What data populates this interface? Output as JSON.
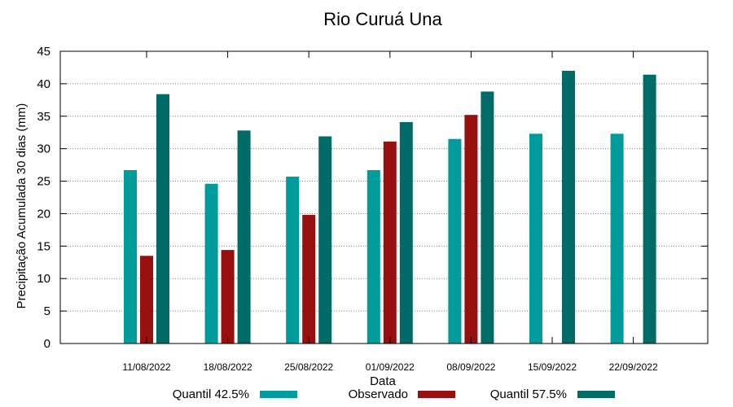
{
  "chart_data": {
    "type": "bar",
    "title": "Rio Curuá Una",
    "xlabel": "Data",
    "ylabel": "Precipitação Acumulada 30 dias (mm)",
    "ylim": [
      0,
      45
    ],
    "yticks": [
      "0",
      "5",
      "10",
      "15",
      "20",
      "25",
      "30",
      "35",
      "40",
      "45"
    ],
    "grid": "horizontal-dotted",
    "legend_position": "bottom",
    "categories": [
      "11/08/2022",
      "18/08/2022",
      "25/08/2022",
      "01/09/2022",
      "08/09/2022",
      "15/09/2022",
      "22/09/2022"
    ],
    "series": [
      {
        "name": "Quantil 42.5%",
        "color": "#009b9b",
        "values": [
          26.7,
          24.6,
          25.7,
          26.7,
          31.5,
          32.3,
          32.3
        ]
      },
      {
        "name": "Observado",
        "color": "#970f0f",
        "values": [
          13.5,
          14.4,
          19.8,
          31.1,
          35.2,
          null,
          null
        ]
      },
      {
        "name": "Quantil 57.5%",
        "color": "#006b67",
        "values": [
          38.4,
          32.8,
          31.9,
          34.1,
          38.8,
          42.0,
          41.4
        ]
      }
    ]
  }
}
